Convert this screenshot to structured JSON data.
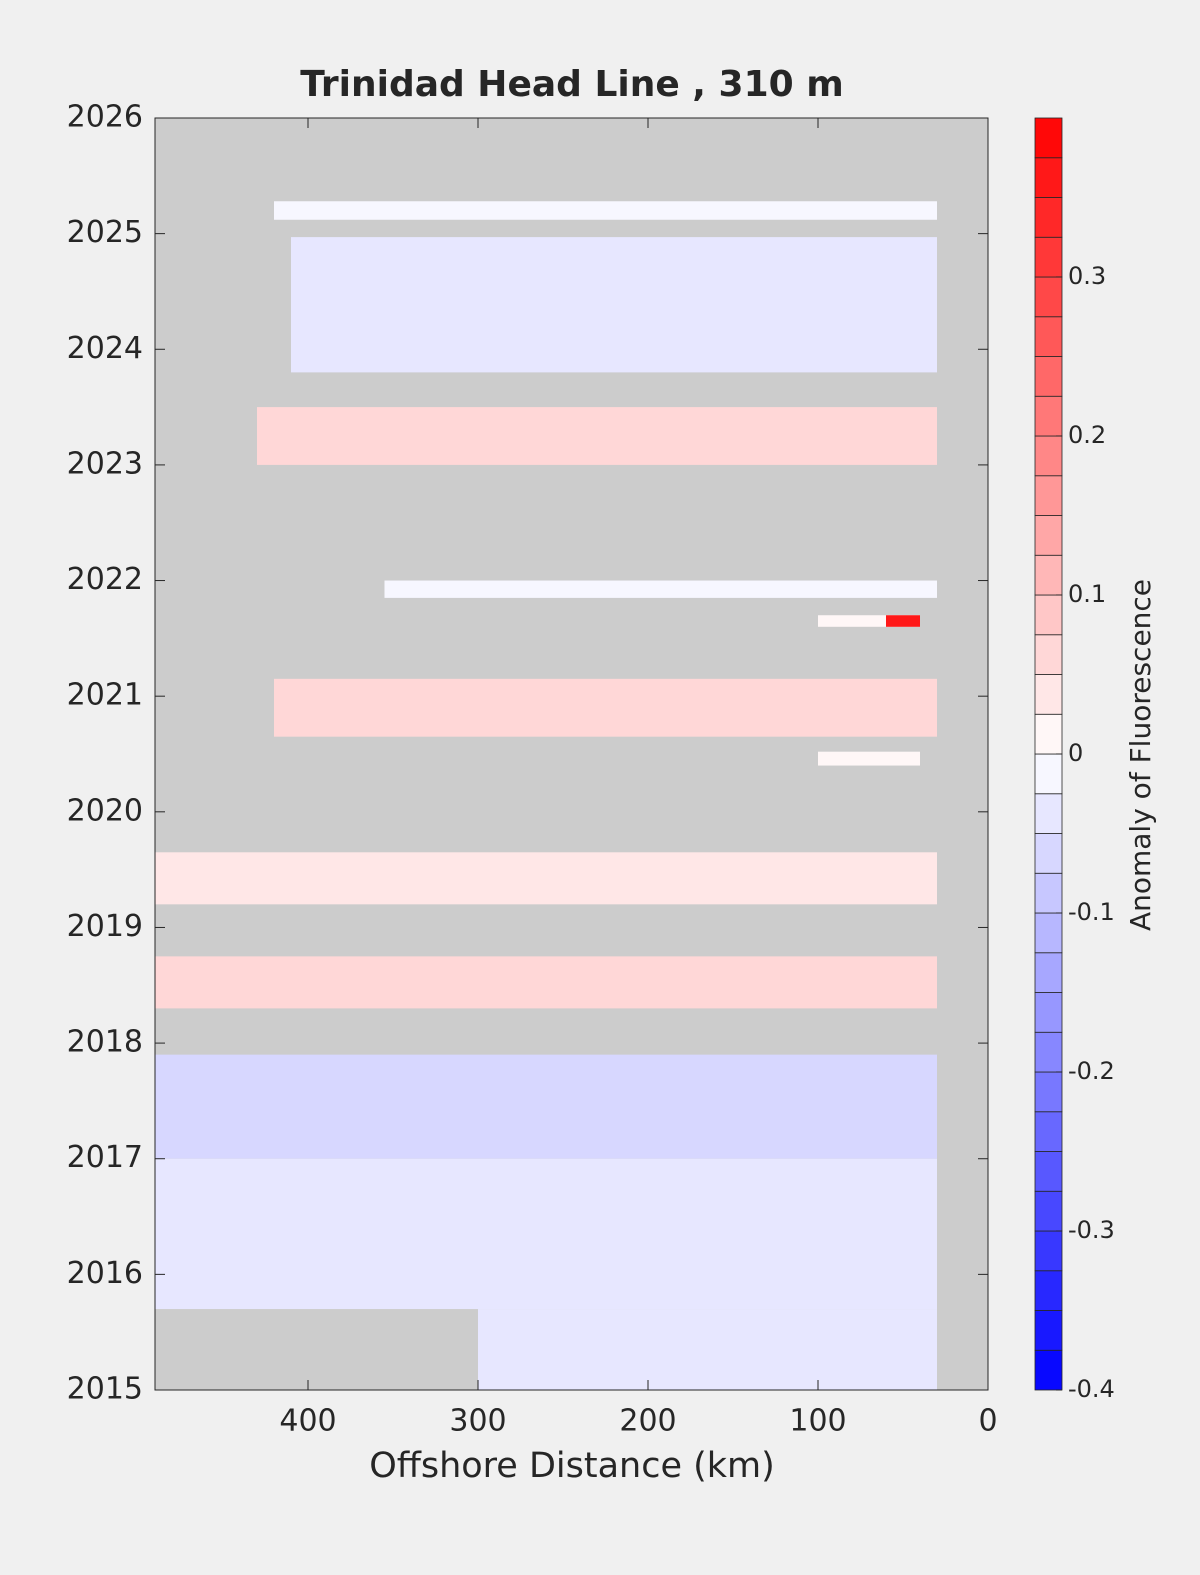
{
  "chart_data": {
    "type": "contour",
    "title": "Trinidad Head Line , 310 m",
    "xlabel": "Offshore Distance (km)",
    "colorbar_label": "Anomaly of Fluorescence",
    "xlim": [
      490,
      0
    ],
    "xticks": [
      400,
      300,
      200,
      100,
      0
    ],
    "ylim": [
      2015,
      2026
    ],
    "yticks": [
      2015,
      2016,
      2017,
      2018,
      2019,
      2020,
      2021,
      2022,
      2023,
      2024,
      2025,
      2026
    ],
    "clim": [
      -0.4,
      0.4
    ],
    "colorbar_ticks": [
      -0.4,
      -0.3,
      -0.2,
      -0.1,
      0,
      0.1,
      0.2,
      0.3
    ],
    "colorbar_steps": 32,
    "colormap": [
      "#0000ff",
      "#ffffff",
      "#ff0000"
    ],
    "background": "#cccccc",
    "patches": [
      {
        "x0": 420,
        "x1": 30,
        "y0": 2025.12,
        "y1": 2025.28,
        "value": -0.02
      },
      {
        "x0": 410,
        "x1": 30,
        "y0": 2023.8,
        "y1": 2024.97,
        "value": -0.03
      },
      {
        "x0": 430,
        "x1": 30,
        "y0": 2023.0,
        "y1": 2023.5,
        "value": 0.06
      },
      {
        "x0": 355,
        "x1": 30,
        "y0": 2021.85,
        "y1": 2022.0,
        "value": -0.01
      },
      {
        "x0": 100,
        "x1": 40,
        "y0": 2021.6,
        "y1": 2021.7,
        "value": 0.02
      },
      {
        "x0": 60,
        "x1": 40,
        "y0": 2021.6,
        "y1": 2021.7,
        "value": 0.35
      },
      {
        "x0": 420,
        "x1": 30,
        "y0": 2020.65,
        "y1": 2021.15,
        "value": 0.07
      },
      {
        "x0": 100,
        "x1": 40,
        "y0": 2020.4,
        "y1": 2020.52,
        "value": 0
      },
      {
        "x0": 490,
        "x1": 30,
        "y0": 2019.2,
        "y1": 2019.65,
        "value": 0.04
      },
      {
        "x0": 490,
        "x1": 30,
        "y0": 2018.3,
        "y1": 2018.75,
        "value": 0.07
      },
      {
        "x0": 490,
        "x1": 30,
        "y0": 2017.0,
        "y1": 2017.9,
        "value": -0.06
      },
      {
        "x0": 490,
        "x1": 30,
        "y0": 2015.7,
        "y1": 2017.0,
        "value": -0.05
      },
      {
        "x0": 300,
        "x1": 30,
        "y0": 2015.0,
        "y1": 2015.7,
        "value": -0.04
      }
    ]
  }
}
